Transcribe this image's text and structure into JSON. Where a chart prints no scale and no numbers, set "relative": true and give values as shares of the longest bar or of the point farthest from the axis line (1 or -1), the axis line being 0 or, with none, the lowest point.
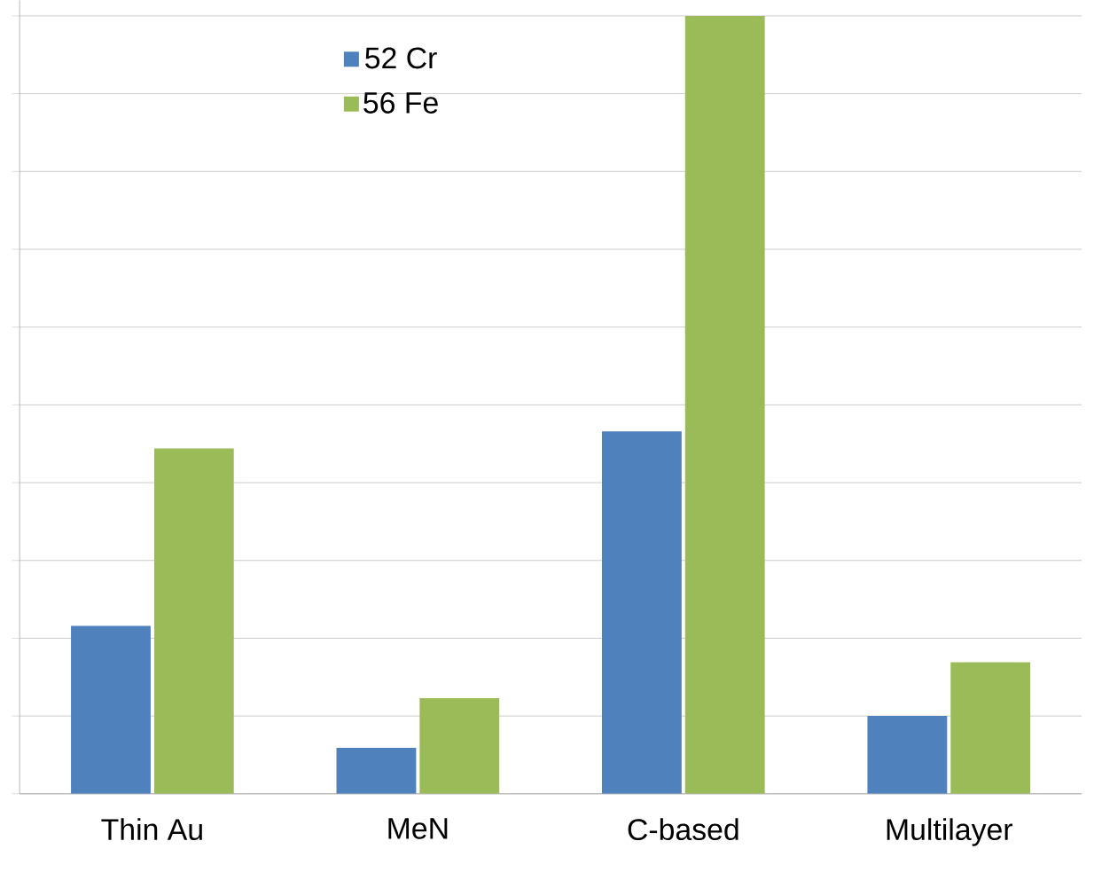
{
  "chart_data": {
    "type": "bar",
    "relative": true,
    "grid": "y",
    "legend": "top left",
    "categories": [
      "Thin Au",
      "MeN",
      "C-based",
      "Multilayer"
    ],
    "series": [
      {
        "name": "52 Cr",
        "color": "#4f81bd",
        "values": [
          0.216,
          0.059,
          0.466,
          0.1
        ]
      },
      {
        "name": "56 Fe",
        "color": "#9bbb59",
        "values": [
          0.444,
          0.123,
          1,
          0.169
        ]
      }
    ]
  }
}
